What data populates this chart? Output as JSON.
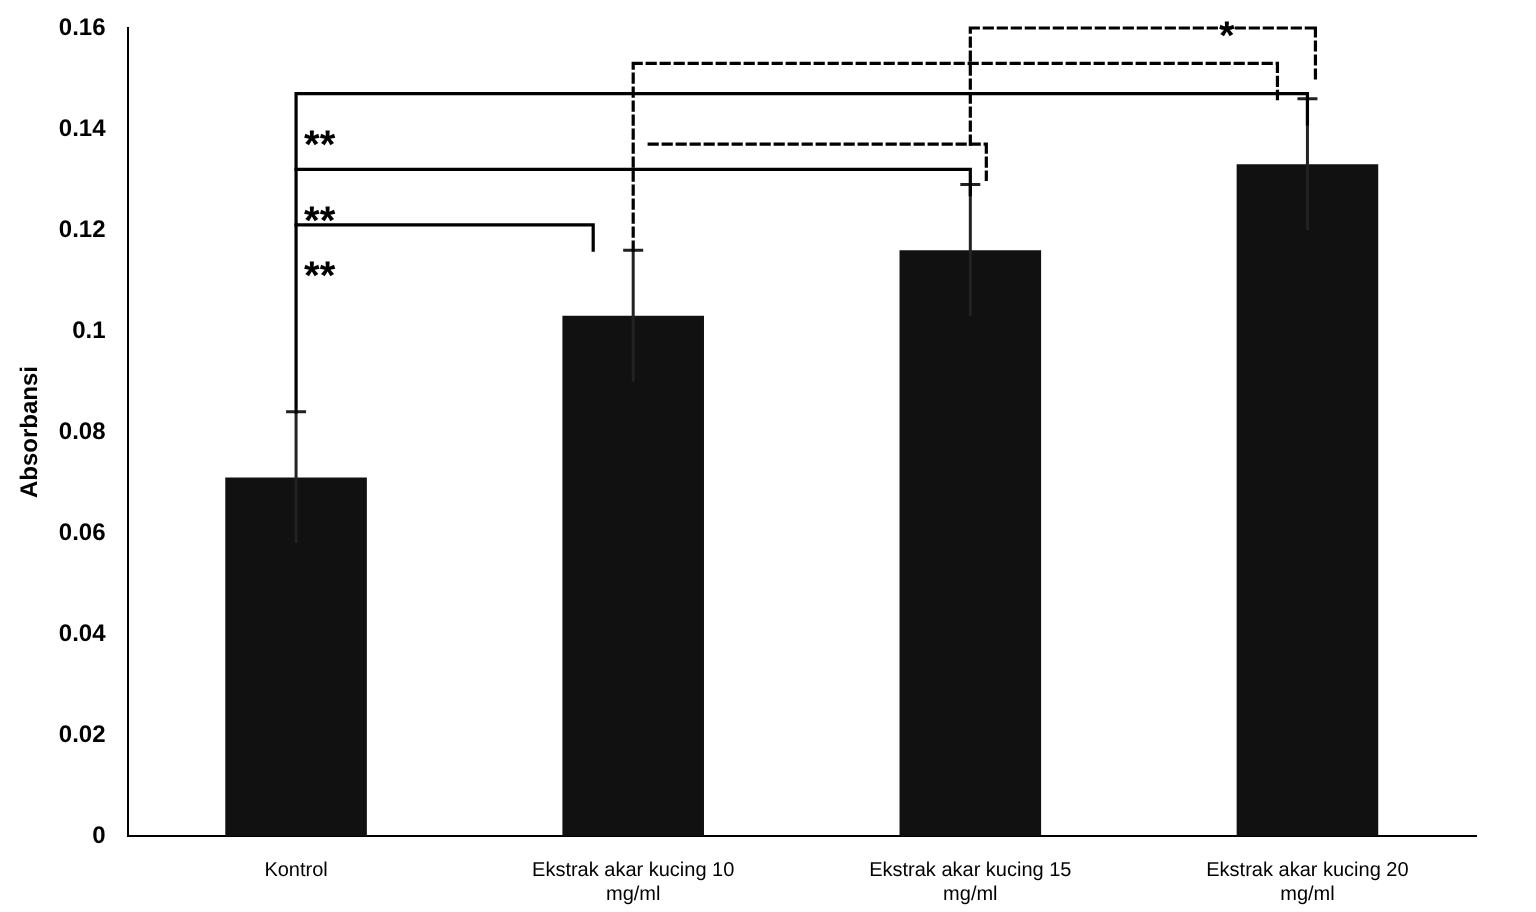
{
  "chart_data": {
    "type": "bar",
    "ylabel": "Absorbansi",
    "categories": [
      "Kontrol",
      "Ekstrak akar kucing 10 mg/ml",
      "Ekstrak akar kucing 15 mg/ml",
      "Ekstrak akar kucing 20 mg/ml"
    ],
    "values": [
      0.071,
      0.103,
      0.116,
      0.133
    ],
    "errors": [
      0.013,
      0.013,
      0.013,
      0.013
    ],
    "color": "#111111",
    "ylim": [
      0,
      0.16
    ],
    "yticks": [
      0,
      0.02,
      0.04,
      0.06,
      0.08,
      0.1,
      0.12,
      0.14,
      0.16
    ],
    "grid": false,
    "legend": false,
    "annotations": [
      "**",
      "**",
      "**",
      "*"
    ]
  }
}
